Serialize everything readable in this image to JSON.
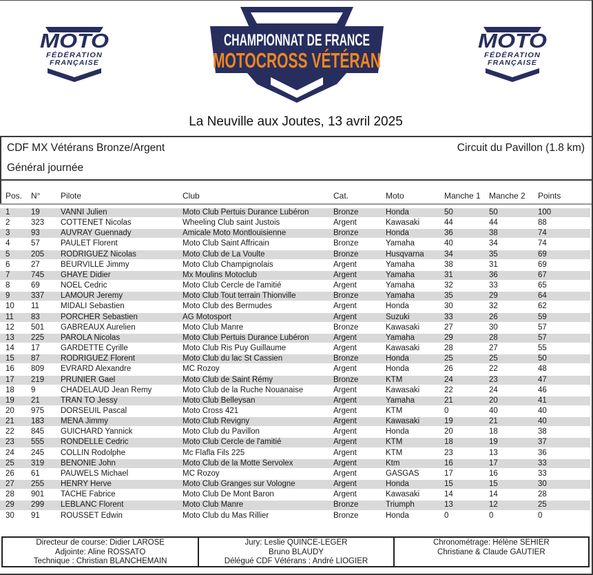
{
  "branding": {
    "federation_logo": {
      "name": "MOTO",
      "line1": "FÉDÉRATION",
      "line2": "FRANÇAISE"
    },
    "banner": {
      "line1": "CHAMPIONNAT DE FRANCE",
      "line2": "MOTOCROSS VÉTÉRAN"
    },
    "colors": {
      "navy": "#272E5E",
      "orange": "#F0861E",
      "stripe_gray": "#d9d9d9"
    }
  },
  "page": {
    "title": "La Neuville aux Joutes, 13 avril 2025",
    "category": "CDF MX Vétérans Bronze/Argent",
    "circuit": "Circuit du Pavillon (1.8 km)",
    "subtitle": "Général journée"
  },
  "table": {
    "headers": [
      "Pos.",
      "N°",
      "Pilote",
      "Club",
      "Cat.",
      "Moto",
      "Manche 1",
      "Manche 2",
      "Points"
    ],
    "rows": [
      [
        1,
        19,
        "VANNI Julien",
        "Moto Club Pertuis Durance Lubéron",
        "Bronze",
        "Honda",
        50,
        50,
        100
      ],
      [
        2,
        323,
        "COTTENET Nicolas",
        "Wheeling Club saint Justois",
        "Argent",
        "Kawasaki",
        44,
        44,
        88
      ],
      [
        3,
        93,
        "AUVRAY Guennady",
        "Amicale Moto Montlouisienne",
        "Bronze",
        "Honda",
        36,
        38,
        74
      ],
      [
        4,
        57,
        "PAULET Florent",
        "Moto Club Saint Affricain",
        "Bronze",
        "Yamaha",
        40,
        34,
        74
      ],
      [
        5,
        205,
        "RODRIGUEZ Nicolas",
        "Moto Club de La Voulte",
        "Bronze",
        "Husqvarna",
        34,
        35,
        69
      ],
      [
        6,
        27,
        "BEURVILLE Jimmy",
        "Moto Club Champignolais",
        "Argent",
        "Yamaha",
        38,
        31,
        69
      ],
      [
        7,
        745,
        "GHAYE Didier",
        "Mx Moulins Motoclub",
        "Argent",
        "Yamaha",
        31,
        36,
        67
      ],
      [
        8,
        69,
        "NOEL Cedric",
        "Moto Club Cercle de l'amitié",
        "Argent",
        "Yamaha",
        32,
        33,
        65
      ],
      [
        9,
        337,
        "LAMOUR Jeremy",
        "Moto Club Tout terrain Thionville",
        "Bronze",
        "Yamaha",
        35,
        29,
        64
      ],
      [
        10,
        11,
        "MIDALI Sebastien",
        "Moto Club des Bermudes",
        "Argent",
        "Honda",
        30,
        32,
        62
      ],
      [
        11,
        83,
        "PORCHER Sebastien",
        "AG Motosport",
        "Argent",
        "Suzuki",
        33,
        26,
        59
      ],
      [
        12,
        501,
        "GABREAUX Aurelien",
        "Moto Club Manre",
        "Bronze",
        "Kawasaki",
        27,
        30,
        57
      ],
      [
        13,
        225,
        "PAROLA Nicolas",
        "Moto Club Pertuis Durance Lubéron",
        "Argent",
        "Yamaha",
        29,
        28,
        57
      ],
      [
        14,
        17,
        "GARDETTE Cyrille",
        "Moto Club Ris Puy Guillaume",
        "Argent",
        "Kawasaki",
        28,
        27,
        55
      ],
      [
        15,
        87,
        "RODRIGUEZ Florent",
        "Moto Club du lac St Cassien",
        "Bronze",
        "Honda",
        25,
        25,
        50
      ],
      [
        16,
        809,
        "EVRARD Alexandre",
        "MC Rozoy",
        "Argent",
        "Honda",
        26,
        22,
        48
      ],
      [
        17,
        219,
        "PRUNIER Gael",
        "Moto Club de Saint Rémy",
        "Bronze",
        "KTM",
        24,
        23,
        47
      ],
      [
        18,
        9,
        "CHADELAUD Jean Remy",
        "Moto Club de la Ruche Nouanaise",
        "Argent",
        "Kawasaki",
        22,
        24,
        46
      ],
      [
        19,
        21,
        "TRAN TO Jessy",
        "Moto Club Belleysan",
        "Argent",
        "Yamaha",
        21,
        20,
        41
      ],
      [
        20,
        975,
        "DORSEUIL Pascal",
        "Moto Cross 421",
        "Argent",
        "KTM",
        0,
        40,
        40
      ],
      [
        21,
        183,
        "MENA Jimmy",
        "Moto Club Revigny",
        "Argent",
        "Kawasaki",
        19,
        21,
        40
      ],
      [
        22,
        845,
        "GUICHARD Yannick",
        "Moto Club du Pavillon",
        "Argent",
        "Honda",
        20,
        18,
        38
      ],
      [
        23,
        555,
        "RONDELLE Cedric",
        "Moto Club Cercle de l'amitié",
        "Argent",
        "KTM",
        18,
        19,
        37
      ],
      [
        24,
        245,
        "COLLIN Rodolphe",
        "Mc Flafla Fils 225",
        "Argent",
        "KTM",
        23,
        13,
        36
      ],
      [
        25,
        319,
        "BENONIE John",
        "Moto Club de la Motte Servolex",
        "Argent",
        "Ktm",
        16,
        17,
        33
      ],
      [
        26,
        61,
        "PAUWELS Michael",
        "MC Rozoy",
        "Argent",
        "GASGAS",
        17,
        16,
        33
      ],
      [
        27,
        255,
        "HENRY Herve",
        "Moto Club Granges sur Vologne",
        "Argent",
        "Honda",
        15,
        15,
        30
      ],
      [
        28,
        901,
        "TACHE Fabrice",
        "Moto Club De Mont Baron",
        "Argent",
        "Kawasaki",
        14,
        14,
        28
      ],
      [
        29,
        299,
        "LEBLANC Florent",
        "Moto Club Manre",
        "Bronze",
        "Triumph",
        13,
        12,
        25
      ],
      [
        30,
        91,
        "ROUSSET Edwin",
        "Moto Club du Mas Rillier",
        "Bronze",
        "Honda",
        0,
        0,
        0
      ]
    ]
  },
  "officials": {
    "col1": [
      "Directeur de course: Didier LAROSE",
      "Adjointe: Aline ROSSATO",
      "Technique : Christian BLANCHEMAIN"
    ],
    "col2": [
      "Jury: Leslie QUINCE-LEGER",
      "Bruno BLAUDY",
      "Délégué CDF Vétérans : André LIOGIER"
    ],
    "col3": [
      "Chronométrage: Hélène SEHIER",
      "Christiane & Claude GAUTIER"
    ]
  }
}
